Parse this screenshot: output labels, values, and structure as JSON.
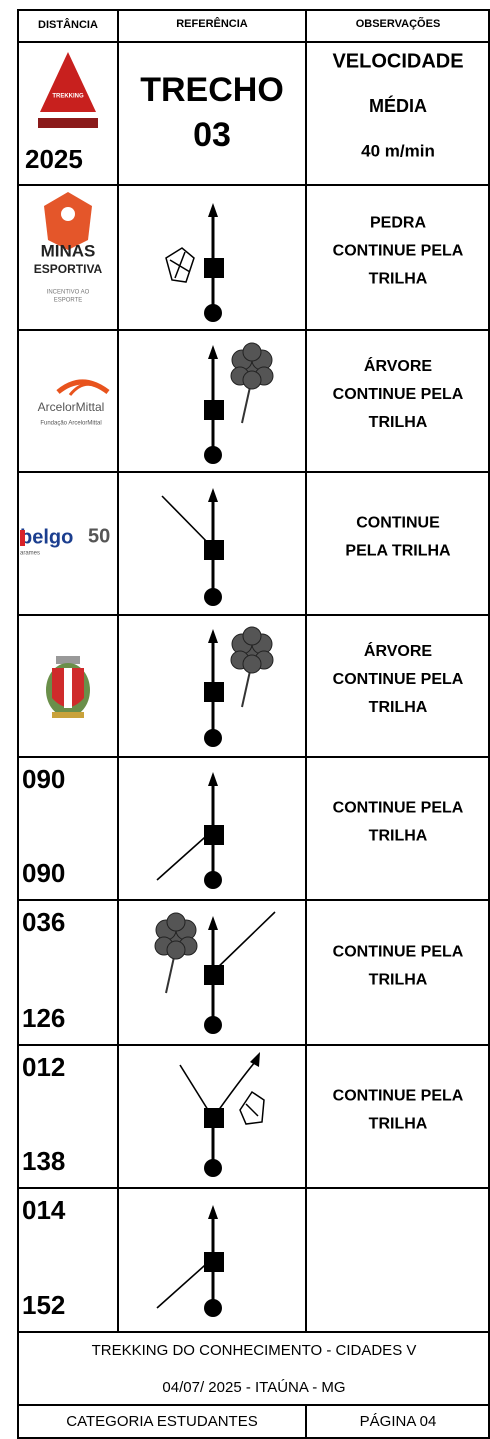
{
  "header": {
    "columns": [
      "DISTÂNCIA",
      "REFERÊNCIA",
      "OBSERVAÇÕES"
    ]
  },
  "rows": [
    {
      "logo": [
        "TREKKING"
      ],
      "distance": [
        "2025"
      ],
      "reference": [
        "TRECHO",
        "03"
      ],
      "observations": [
        "VELOCIDADE",
        "MÉDIA",
        "40 m/min"
      ]
    },
    {
      "logo": [
        "MINAS",
        "ESPORTIVA",
        "INCENTIVO AO",
        "ESPORTE"
      ],
      "observations": [
        "PEDRA",
        "CONTINUE PELA",
        "TRILHA"
      ]
    },
    {
      "logo": [
        "ArcelorMittal",
        "Fundação ArcelorMittal"
      ],
      "observations": [
        "ÁRVORE",
        "CONTINUE PELA",
        "TRILHA"
      ]
    },
    {
      "logo": [
        "belgo",
        "50",
        "arames"
      ],
      "observations": [
        "CONTINUE",
        "PELA TRILHA"
      ]
    },
    {
      "observations": [
        "ÁRVORE",
        "CONTINUE PELA",
        "TRILHA"
      ]
    },
    {
      "distance": [
        "090",
        "090"
      ],
      "observations": [
        "CONTINUE PELA",
        "TRILHA"
      ]
    },
    {
      "distance": [
        "036",
        "126"
      ],
      "observations": [
        "CONTINUE PELA",
        "TRILHA"
      ]
    },
    {
      "distance": [
        "012",
        "138"
      ],
      "observations": [
        "CONTINUE PELA",
        "TRILHA"
      ]
    },
    {
      "distance": [
        "014",
        "152"
      ]
    }
  ],
  "footer": {
    "title": "TREKKING DO CONHECIMENTO - CIDADES V",
    "date": "04/07/ 2025 - ITAÚNA - MG",
    "category": "CATEGORIA ESTUDANTES",
    "page": "PÁGINA 04"
  }
}
